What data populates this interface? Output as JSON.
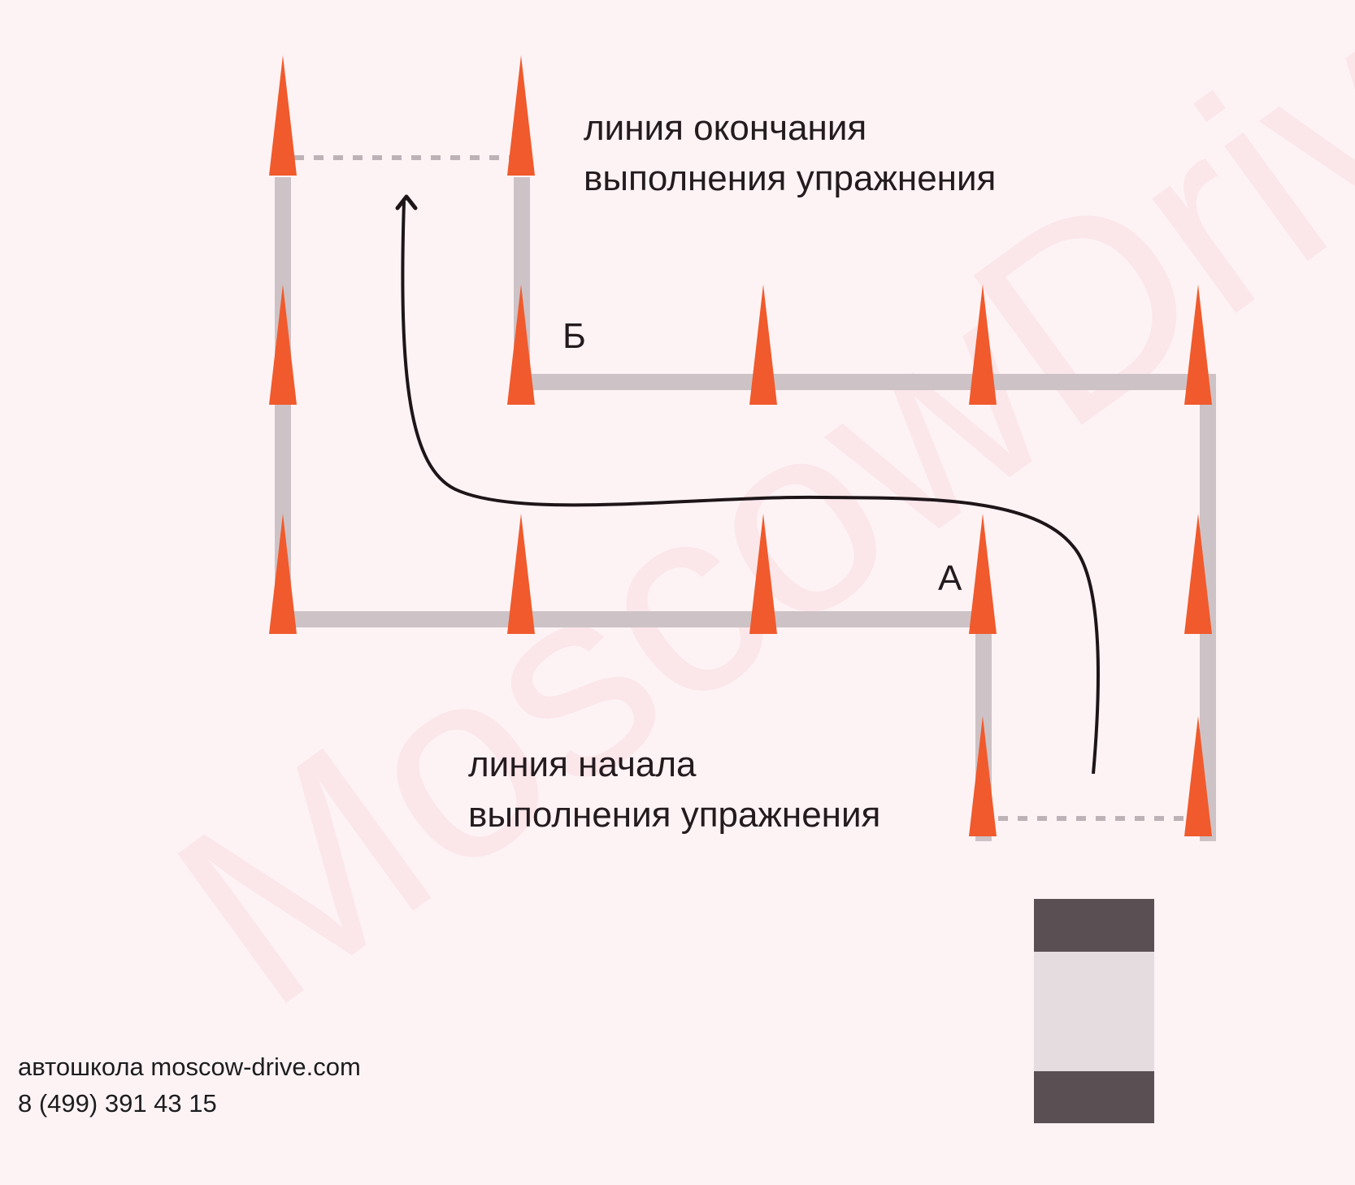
{
  "watermark": "MoscowDrive",
  "labels": {
    "finish_line_1": "линия окончания",
    "finish_line_2": "выполнения упражнения",
    "start_line_1": "линия начала",
    "start_line_2": "выполнения упражнения",
    "point_a": "А",
    "point_b": "Б"
  },
  "footer": {
    "school": "автошкола moscow-drive.com",
    "phone": "8 (499) 391 43 15"
  },
  "colors": {
    "background": "#fdf3f5",
    "boundary": "#cdc3c7",
    "cone": "#f05a2c",
    "path": "#1e1518",
    "car_dark": "#5a5053",
    "car_body": "#e5dcdf"
  },
  "icons": [
    "traffic-cone-icon",
    "car-icon",
    "arrow-up-icon"
  ]
}
